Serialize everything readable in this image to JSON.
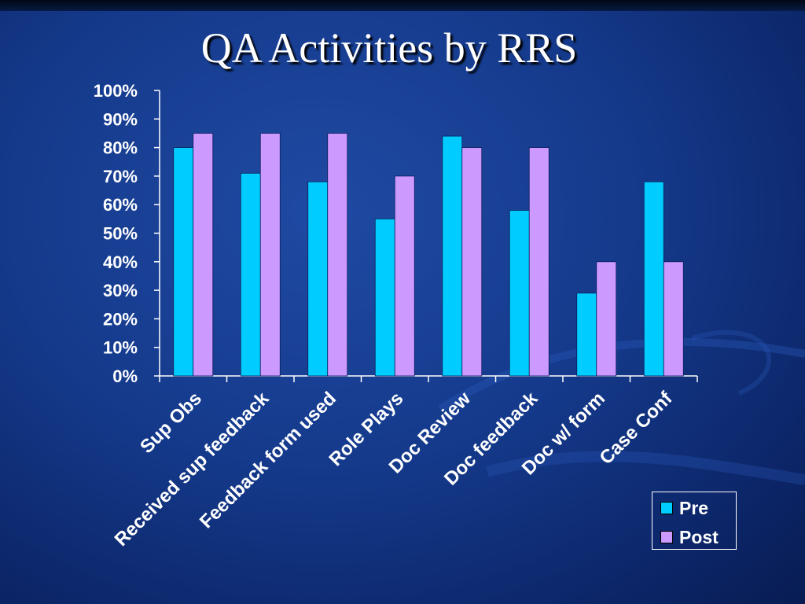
{
  "title": "QA Activities by RRS",
  "colors": {
    "pre": "#00ccff",
    "post": "#cc99ff"
  },
  "chart_data": {
    "type": "bar",
    "title": "QA Activities by RRS",
    "xlabel": "",
    "ylabel": "",
    "categories": [
      "Sup Obs",
      "Received sup feedback",
      "Feedback form used",
      "Role Plays",
      "Doc Review",
      "Doc feedback",
      "Doc w/ form",
      "Case Conf"
    ],
    "series": [
      {
        "name": "Pre",
        "values": [
          80,
          71,
          68,
          55,
          84,
          58,
          29,
          68
        ]
      },
      {
        "name": "Post",
        "values": [
          85,
          85,
          85,
          70,
          80,
          80,
          40,
          40
        ]
      }
    ],
    "ylim": [
      0,
      100
    ],
    "yticks": [
      "0%",
      "10%",
      "20%",
      "30%",
      "40%",
      "50%",
      "60%",
      "70%",
      "80%",
      "90%",
      "100%"
    ],
    "grid": false,
    "legend_position": "bottom-right"
  }
}
